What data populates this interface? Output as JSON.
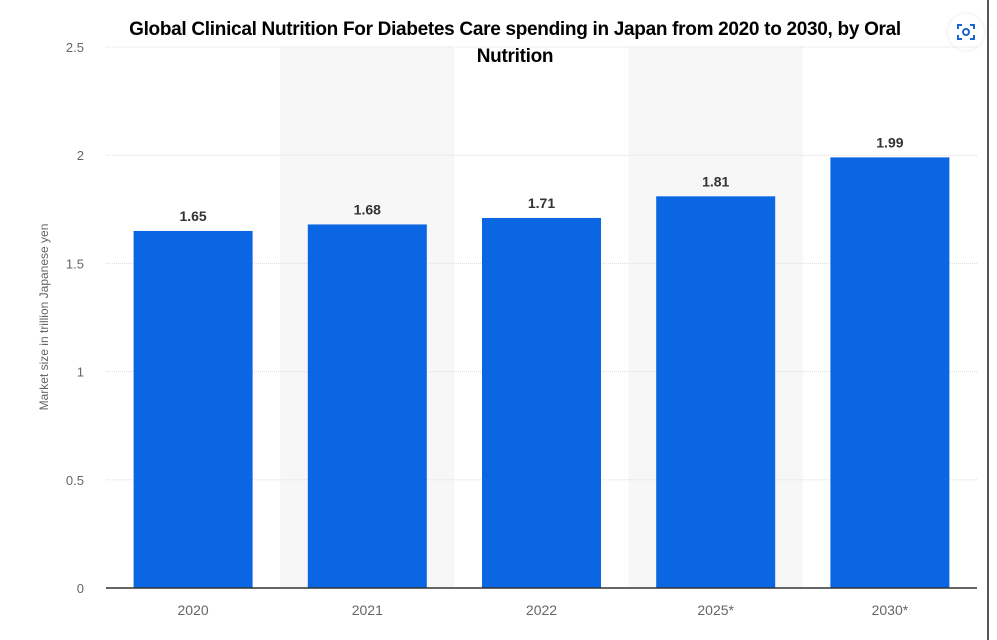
{
  "chart_data": {
    "type": "bar",
    "title": "Global Clinical Nutrition For Diabetes Care spending in Japan from 2020 to 2030, by Oral Nutrition",
    "ylabel": "Market size in trillion Japanese yen",
    "xlabel": "",
    "categories": [
      "2020",
      "2021",
      "2022",
      "2025*",
      "2030*"
    ],
    "values": [
      1.65,
      1.68,
      1.71,
      1.81,
      1.99
    ],
    "data_labels": [
      "1.65",
      "1.68",
      "1.71",
      "1.81",
      "1.99"
    ],
    "ylim": [
      0,
      2.5
    ],
    "yticks": [
      "0",
      "0.5",
      "1",
      "1.5",
      "2",
      "2.5"
    ],
    "grid": true,
    "bar_color": "#0b66e4"
  },
  "toolbar": {
    "icon": "image-search-icon"
  }
}
